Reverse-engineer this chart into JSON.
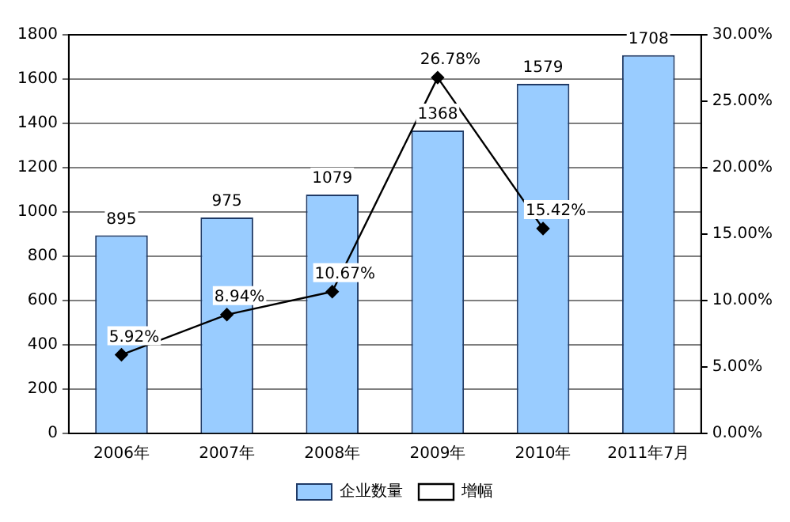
{
  "chart_data": {
    "type": "bar",
    "categories": [
      "2006年",
      "2007年",
      "2008年",
      "2009年",
      "2010年",
      "2011年7月"
    ],
    "series": [
      {
        "name": "企业数量",
        "color": "#99ccff",
        "values": [
          895,
          975,
          1079,
          1368,
          1579,
          1708
        ],
        "value_labels": [
          "895",
          "975",
          "1079",
          "1368",
          "1579",
          "1708"
        ]
      },
      {
        "name": "增幅",
        "type": "line",
        "axis": "y2",
        "color": "#000000",
        "values": [
          5.92,
          8.94,
          10.67,
          26.78,
          15.42,
          null
        ],
        "value_labels": [
          "5.92%",
          "8.94%",
          "10.67%",
          "26.78%",
          "15.42%",
          null
        ]
      }
    ],
    "ylim": [
      0,
      1800
    ],
    "yticks": [
      0,
      200,
      400,
      600,
      800,
      1000,
      1200,
      1400,
      1600,
      1800
    ],
    "y2lim": [
      0,
      30
    ],
    "y2ticks": [
      {
        "value": 0,
        "label": "0.00%"
      },
      {
        "value": 5,
        "label": "5.00%"
      },
      {
        "value": 10,
        "label": "10.00%"
      },
      {
        "value": 15,
        "label": "15.00%"
      },
      {
        "value": 20,
        "label": "20.00%"
      },
      {
        "value": 25,
        "label": "25.00%"
      },
      {
        "value": 30,
        "label": "30.00%"
      }
    ],
    "grid": "y",
    "legend": "bottom",
    "marker": "diamond",
    "line_style": "solid"
  }
}
